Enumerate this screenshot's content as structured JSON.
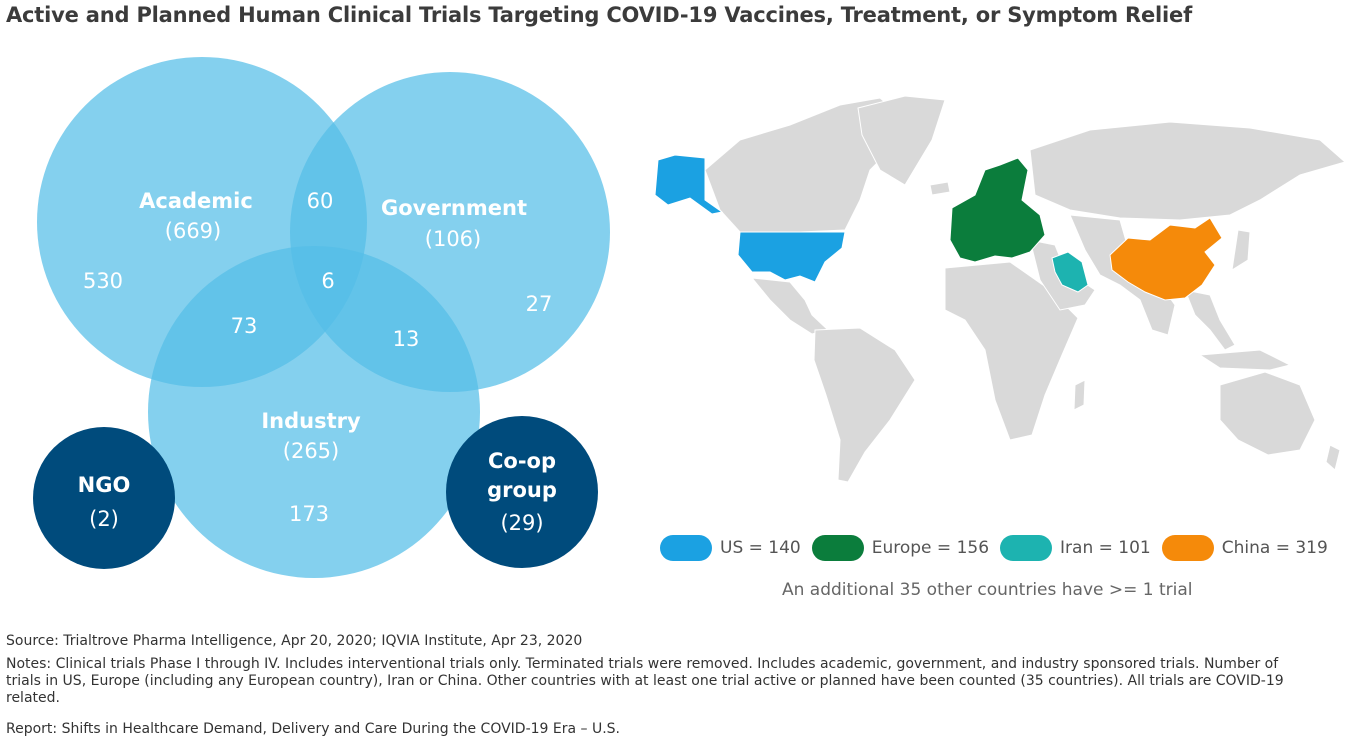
{
  "title": "Active and Planned Human Clinical Trials Targeting COVID-19 Vaccines, Treatment, or Symptom Relief",
  "venn": {
    "academic": {
      "label": "Academic",
      "total": "(669)",
      "only": "530"
    },
    "government": {
      "label": "Government",
      "total": "(106)",
      "only": "27"
    },
    "industry": {
      "label": "Industry",
      "total": "(265)",
      "only": "173"
    },
    "academic_government": "60",
    "academic_industry": "73",
    "government_industry": "13",
    "all_three": "6",
    "ngo": {
      "label": "NGO",
      "total": "(2)"
    },
    "coop": {
      "label_line1": "Co-op",
      "label_line2": "group",
      "total": "(29)"
    }
  },
  "map": {
    "highlight_colors": {
      "us": "#1ba1e2",
      "europe": "#0b7d3c",
      "iran": "#1db3b0",
      "china": "#f58a0a",
      "other": "#d9d9d9"
    },
    "legend": [
      {
        "label": "US = 140",
        "color": "#1ba1e2"
      },
      {
        "label": "Europe = 156",
        "color": "#0b7d3c"
      },
      {
        "label": "Iran = 101",
        "color": "#1db3b0"
      },
      {
        "label": "China = 319",
        "color": "#f58a0a"
      }
    ],
    "additional": "An additional 35 other countries have >= 1 trial"
  },
  "footer": {
    "source": "Source: Trialtrove Pharma Intelligence, Apr 20, 2020; IQVIA Institute, Apr 23, 2020",
    "notes": "Notes: Clinical trials Phase I through IV. Includes interventional trials only. Terminated trials were removed. Includes academic, government, and industry sponsored trials. Number of trials in US, Europe (including any European country), Iran or China. Other countries with at least one trial active or planned have been counted (35 countries). All trials are COVID-19 related.",
    "report": "Report: Shifts in Healthcare Demand, Delivery and Care During the COVID-19 Era – U.S."
  }
}
